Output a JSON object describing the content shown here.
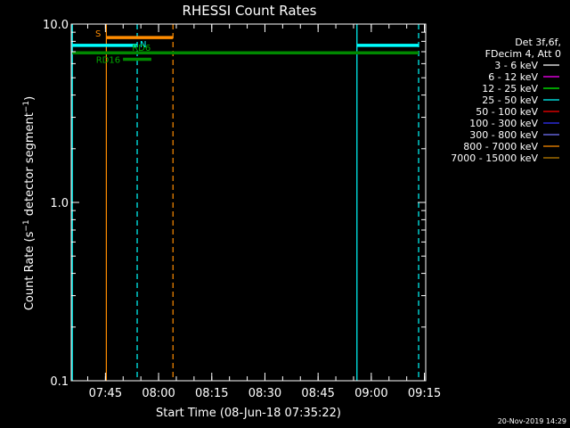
{
  "chart_data": {
    "type": "line",
    "title": "RHESSI Count Rates",
    "xlabel": "Start Time (08-Jun-18 07:35:22)",
    "ylabel_parts": [
      "Count Rate (s",
      "−1",
      " detector segment",
      "−1",
      ")"
    ],
    "yscale": "log",
    "ylim": [
      0.1,
      10.0
    ],
    "xlim_minutes": [
      0,
      100
    ],
    "y_ticks": [
      {
        "value": 0.1,
        "label": "0.1"
      },
      {
        "value": 1.0,
        "label": "1.0"
      },
      {
        "value": 10.0,
        "label": "10.0"
      }
    ],
    "x_ticks": [
      {
        "minute": 9.64,
        "label": "07:45"
      },
      {
        "minute": 24.64,
        "label": "08:00"
      },
      {
        "minute": 39.64,
        "label": "08:15"
      },
      {
        "minute": 54.64,
        "label": "08:30"
      },
      {
        "minute": 69.64,
        "label": "08:45"
      },
      {
        "minute": 84.64,
        "label": "09:00"
      },
      {
        "minute": 99.64,
        "label": "09:15"
      }
    ],
    "legend": {
      "placement": "right",
      "header": [
        "Det 3f,6f,",
        "FDecim 4, Att 0"
      ],
      "entries": [
        {
          "label": "3 - 6 keV",
          "color": "#ffffff"
        },
        {
          "label": "6 - 12 keV",
          "color": "#ff00ff"
        },
        {
          "label": "12 - 25 keV",
          "color": "#00ff00"
        },
        {
          "label": "25 - 50 keV",
          "color": "#00ffff"
        },
        {
          "label": "50 - 100 keV",
          "color": "#ff0000"
        },
        {
          "label": "100 - 300 keV",
          "color": "#3333ff"
        },
        {
          "label": "300 - 800 keV",
          "color": "#7777ff"
        },
        {
          "label": "800 - 7000 keV",
          "color": "#ff8c00"
        },
        {
          "label": "7000 - 15000 keV",
          "color": "#c08000"
        }
      ]
    },
    "vlines": [
      {
        "minute": 0.3,
        "color": "#00ffff",
        "style": "solid"
      },
      {
        "minute": 9.9,
        "color": "#ff8c00",
        "style": "solid"
      },
      {
        "minute": 18.6,
        "color": "#00ffff",
        "style": "dashed"
      },
      {
        "minute": 28.7,
        "color": "#ff8c00",
        "style": "dashed"
      },
      {
        "minute": 80.6,
        "color": "#00ffff",
        "style": "solid"
      },
      {
        "minute": 98.0,
        "color": "#00ffff",
        "style": "dashed"
      }
    ],
    "bars": [
      {
        "label": "S",
        "x0": 9.9,
        "x1": 28.7,
        "y": 8.4,
        "color": "#ff8c00",
        "label_color": "#ff8c00",
        "label_side": "left"
      },
      {
        "label": "N",
        "x0": 0.3,
        "x1": 18.6,
        "y": 7.6,
        "color": "#00ffff",
        "label_color": "#00ffff",
        "label_side": "right"
      },
      {
        "label": "",
        "x0": 80.6,
        "x1": 98.0,
        "y": 7.6,
        "color": "#00ffff",
        "label_color": "#00ffff",
        "label_side": "none"
      },
      {
        "label": "RD6",
        "x0": 0.3,
        "x1": 98.0,
        "y": 6.9,
        "color": "#008800",
        "label_color": "#00aa00",
        "label_side": "above-left"
      },
      {
        "label": "RD16",
        "x0": 14.6,
        "x1": 22.6,
        "y": 6.35,
        "color": "#008800",
        "label_color": "#00aa00",
        "label_side": "left"
      }
    ]
  },
  "timestamp": "20-Nov-2019 14:29"
}
